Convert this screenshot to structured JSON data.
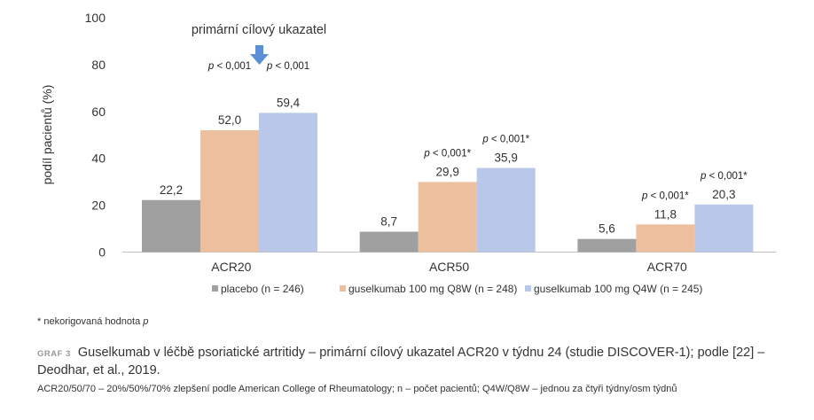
{
  "chart_data": {
    "type": "bar",
    "categories": [
      "ACR20",
      "ACR50",
      "ACR70"
    ],
    "series": [
      {
        "name": "placebo (n = 246)",
        "values": [
          22.2,
          8.7,
          5.6
        ],
        "labels": [
          "22,2",
          "8,7",
          "5,6"
        ],
        "pvalues": [
          "",
          "",
          ""
        ],
        "color": "#a0a0a0"
      },
      {
        "name": "guselkumab 100 mg Q8W (n = 248)",
        "values": [
          52.0,
          29.9,
          11.8
        ],
        "labels": [
          "52,0",
          "29,9",
          "11,8"
        ],
        "pvalues": [
          "< 0,001",
          "< 0,001*",
          "< 0,001*"
        ],
        "color": "#ecc09f"
      },
      {
        "name": "guselkumab 100 mg Q4W (n = 245)",
        "values": [
          59.4,
          35.9,
          20.3
        ],
        "labels": [
          "59,4",
          "35,9",
          "20,3"
        ],
        "pvalues": [
          "< 0,001",
          "< 0,001*",
          "< 0,001*"
        ],
        "color": "#b9c8e8"
      }
    ],
    "ylabel": "podíl pacientů (%)",
    "ylim": [
      0,
      100
    ],
    "yticks": [
      0,
      20,
      40,
      60,
      80,
      100
    ],
    "p_symbol": "p",
    "legend_position": "bottom",
    "annotation": {
      "text": "primární cílový ukazatel",
      "color": "#5b8fd6"
    }
  },
  "footnote": {
    "prefix": "* nekorigovaná hodnota ",
    "symbol": "p"
  },
  "caption": {
    "label": "GRAF 3",
    "text": "Guselkumab v léčbě psoriatické artritidy – primární cílový ukazatel ACR20 v týdnu 24 (studie DISCOVER-1); podle [22] – Deodhar, et al., 2019."
  },
  "abbreviations": "ACR20/50/70 – 20%/50%/70% zlepšení podle American College of Rheumatology; n – počet pacientů; Q4W/Q8W – jednou za čtyři týdny/osm týdnů"
}
